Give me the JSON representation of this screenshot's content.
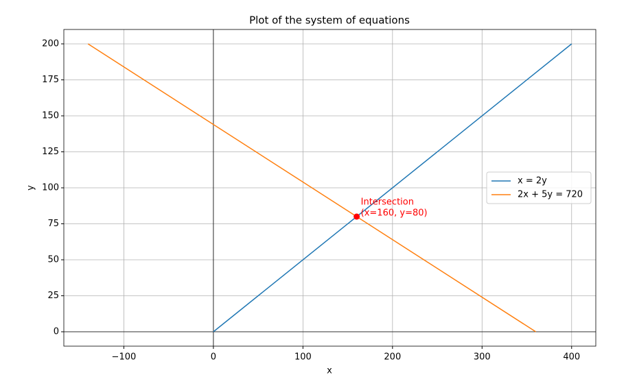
{
  "chart_data": {
    "type": "line",
    "title": "Plot of the system of equations",
    "x_label": "x",
    "y_label": "y",
    "series": [
      {
        "name": "x = 2y",
        "color": "#1f77b4",
        "x": [
          0,
          400
        ],
        "values": [
          0,
          200
        ]
      },
      {
        "name": "2x + 5y = 720",
        "color": "#ff7f0e",
        "x": [
          -140,
          360
        ],
        "values": [
          200,
          0
        ]
      }
    ],
    "points": [
      {
        "x": 160,
        "y": 80,
        "color": "#ff0000"
      }
    ],
    "annotation": [
      "Intersection",
      "(x=160, y=80)"
    ],
    "annotation_color": "#ff0000",
    "hline": 0,
    "vline": 0,
    "xlim": [
      -167,
      427
    ],
    "ylim": [
      -10,
      210
    ],
    "xticks": [
      {
        "value": -100,
        "label": "−100"
      },
      0,
      100,
      200,
      300,
      400
    ],
    "yticks": [
      0,
      25,
      50,
      75,
      100,
      125,
      150,
      175,
      200
    ],
    "grid": true,
    "legend": "center right"
  }
}
